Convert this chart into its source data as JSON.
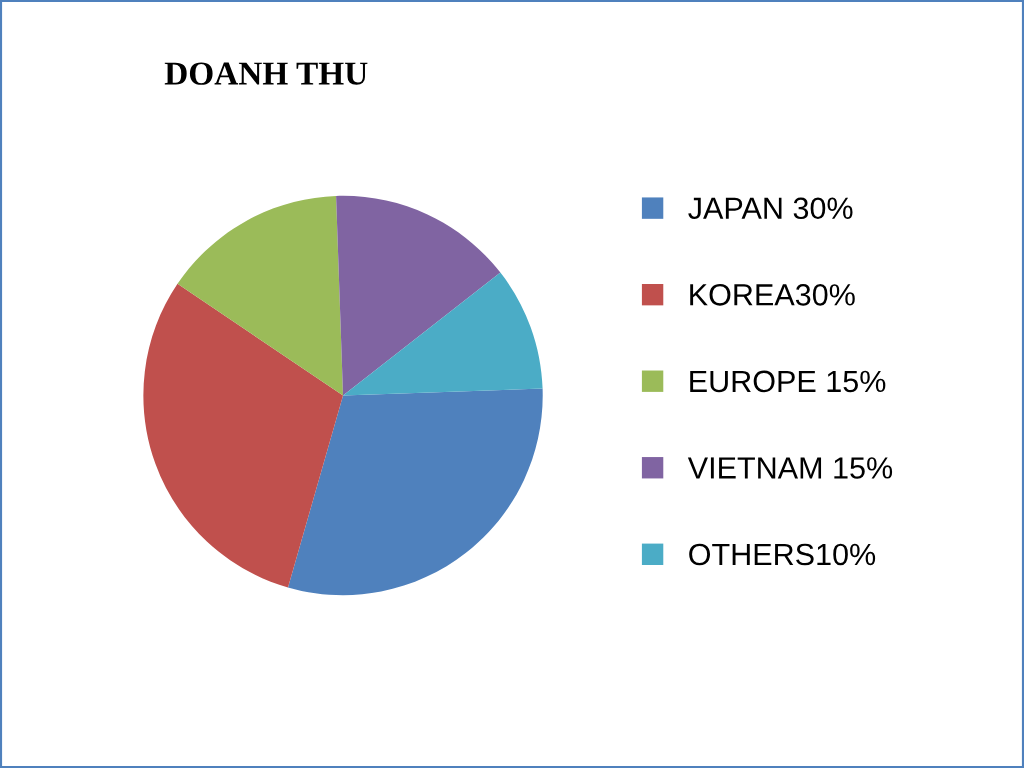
{
  "chart_data": {
    "type": "pie",
    "title": "DOANH THU",
    "categories": [
      "JAPAN 30%",
      "KOREA30%",
      "EUROPE 15%",
      "VIETNAM 15%",
      "OTHERS10%"
    ],
    "values": [
      30,
      30,
      15,
      15,
      10
    ],
    "colors": [
      "#4f81bd",
      "#c0504d",
      "#9bbb59",
      "#8064a2",
      "#4bacc6"
    ],
    "legend": "right"
  }
}
